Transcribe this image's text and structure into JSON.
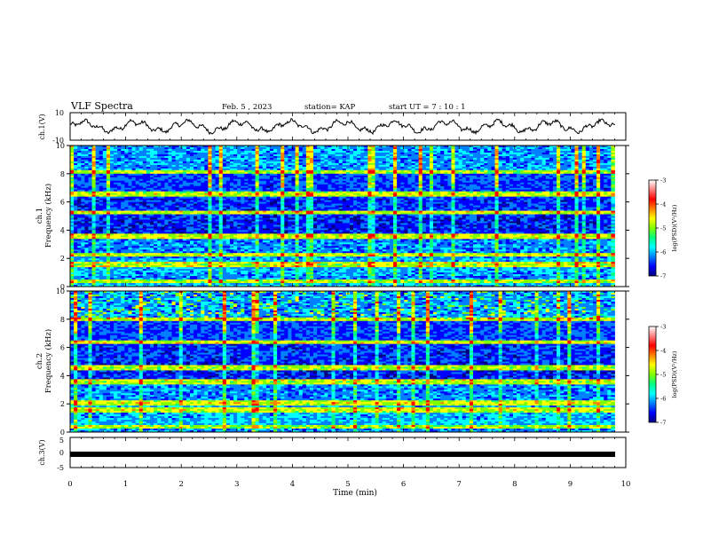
{
  "header": {
    "title": "VLF Spectra",
    "date": "Feb. 5 , 2023",
    "station": "station= KAP",
    "start": "start  UT =   7 : 10 : 1"
  },
  "chart_data": [
    {
      "type": "line",
      "name": "ch1-waveform",
      "ylabel": "ch.1(V)",
      "ylim": [
        -10,
        10
      ],
      "y_ticks": [
        "10",
        "-10"
      ],
      "xlim": [
        0,
        10
      ],
      "description_level": "waveform oscillating roughly between -5 and 5 V"
    },
    {
      "type": "heatmap",
      "name": "ch1-spectrogram",
      "ylabel": "ch.1\nFrequency (kHz)",
      "ylabel_lines": [
        "ch.1",
        "Frequency  (kHz)"
      ],
      "ylim": [
        0,
        10
      ],
      "y_ticks": [
        "0",
        "2",
        "4",
        "6",
        "8",
        "10"
      ],
      "xlim": [
        0,
        9.8
      ],
      "colorbar": {
        "label": "log(PSD)(V²/Hz)",
        "range": [
          -7,
          -3
        ],
        "ticks": [
          "-3",
          "-4",
          "-5",
          "-6",
          "-7"
        ]
      },
      "bands_khz": [
        0.3,
        1.5,
        2.2,
        3.5,
        5.2,
        6.5,
        8.1
      ]
    },
    {
      "type": "heatmap",
      "name": "ch2-spectrogram",
      "ylabel_lines": [
        "ch.2",
        "Frequency  (kHz)"
      ],
      "ylim": [
        0,
        10
      ],
      "y_ticks": [
        "0",
        "2",
        "4",
        "6",
        "8",
        "10"
      ],
      "xlim": [
        0,
        9.8
      ],
      "colorbar": {
        "label": "log(PSD)(V²/Hz)",
        "range": [
          -7,
          -3
        ],
        "ticks": [
          "-3",
          "-4",
          "-5",
          "-6",
          "-7"
        ]
      },
      "bands_khz": [
        0.3,
        1.5,
        2.0,
        3.5,
        4.5,
        6.3,
        7.9
      ]
    },
    {
      "type": "line",
      "name": "ch3-waveform",
      "ylabel": "ch.3(V)",
      "ylim": [
        -5,
        5
      ],
      "y_ticks": [
        "5",
        "0",
        "-5"
      ],
      "level": -0.6
    }
  ],
  "xaxis": {
    "label": "Time  (min)",
    "ticks": [
      "0",
      "1",
      "2",
      "3",
      "4",
      "5",
      "6",
      "7",
      "8",
      "9",
      "10"
    ],
    "range": [
      0,
      10
    ]
  },
  "colors": {
    "scale": [
      "#000080",
      "#0000ff",
      "#0080ff",
      "#00ffff",
      "#00ff80",
      "#80ff00",
      "#ffff00",
      "#ff8000",
      "#ff0000",
      "#ff8080",
      "#ffffff"
    ]
  }
}
